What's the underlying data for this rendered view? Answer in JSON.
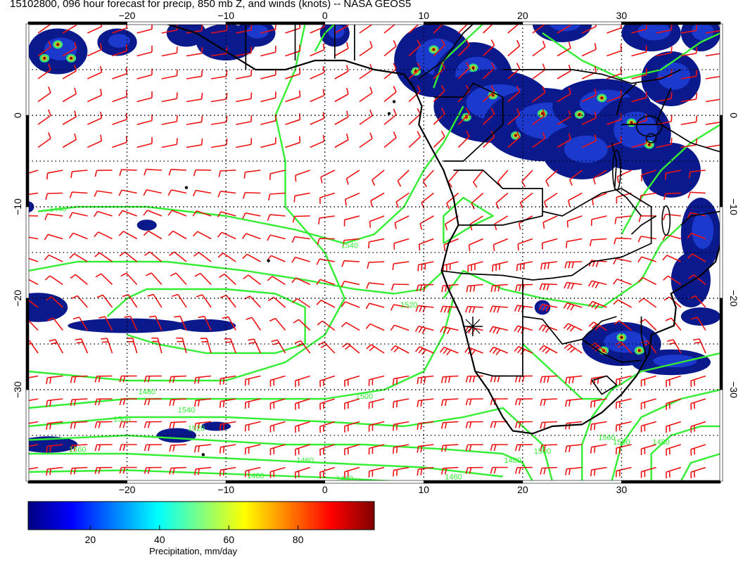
{
  "title": "15102800, 096 hour forecast for precip, 850 mb Z, and winds (knots) -- NASA GEOS5",
  "map": {
    "lon_range": [
      -30,
      40
    ],
    "lat_range": [
      -40,
      10
    ],
    "lon_ticks": [
      -20,
      -10,
      0,
      10,
      20,
      30
    ],
    "lat_ticks": [
      0,
      -10,
      -20,
      -30
    ],
    "lon_tick_labels": [
      "−20",
      "−10",
      "0",
      "10",
      "20",
      "30"
    ],
    "lat_tick_labels": [
      "0",
      "−10",
      "−20",
      "−30"
    ],
    "gridlines": true,
    "colors": {
      "contour": "#33ee33",
      "wind_barb": "#ee1111",
      "coastline": "#000000",
      "precip_low": "#0a1a8c",
      "precip_high": "#7a0000"
    }
  },
  "contours": {
    "unit": "m (850 mb geopotential height)",
    "labels": [
      "1540",
      "1440",
      "1500",
      "1560",
      "1540",
      "1500",
      "1480",
      "1460",
      "1440",
      "1460",
      "1480",
      "1500",
      "1520",
      "1520",
      "1560",
      "1500",
      "1480",
      "1480"
    ]
  },
  "colorbar": {
    "title": "Precipitation, mm/day",
    "ticks": [
      "20",
      "40",
      "60",
      "80"
    ],
    "tick_values": [
      20,
      40,
      60,
      80
    ],
    "range": [
      0,
      100
    ],
    "colors": [
      "#00007f",
      "#0000ff",
      "#0080ff",
      "#00ffff",
      "#80ff80",
      "#ffff00",
      "#ff8000",
      "#ff0000",
      "#7f0000"
    ]
  }
}
